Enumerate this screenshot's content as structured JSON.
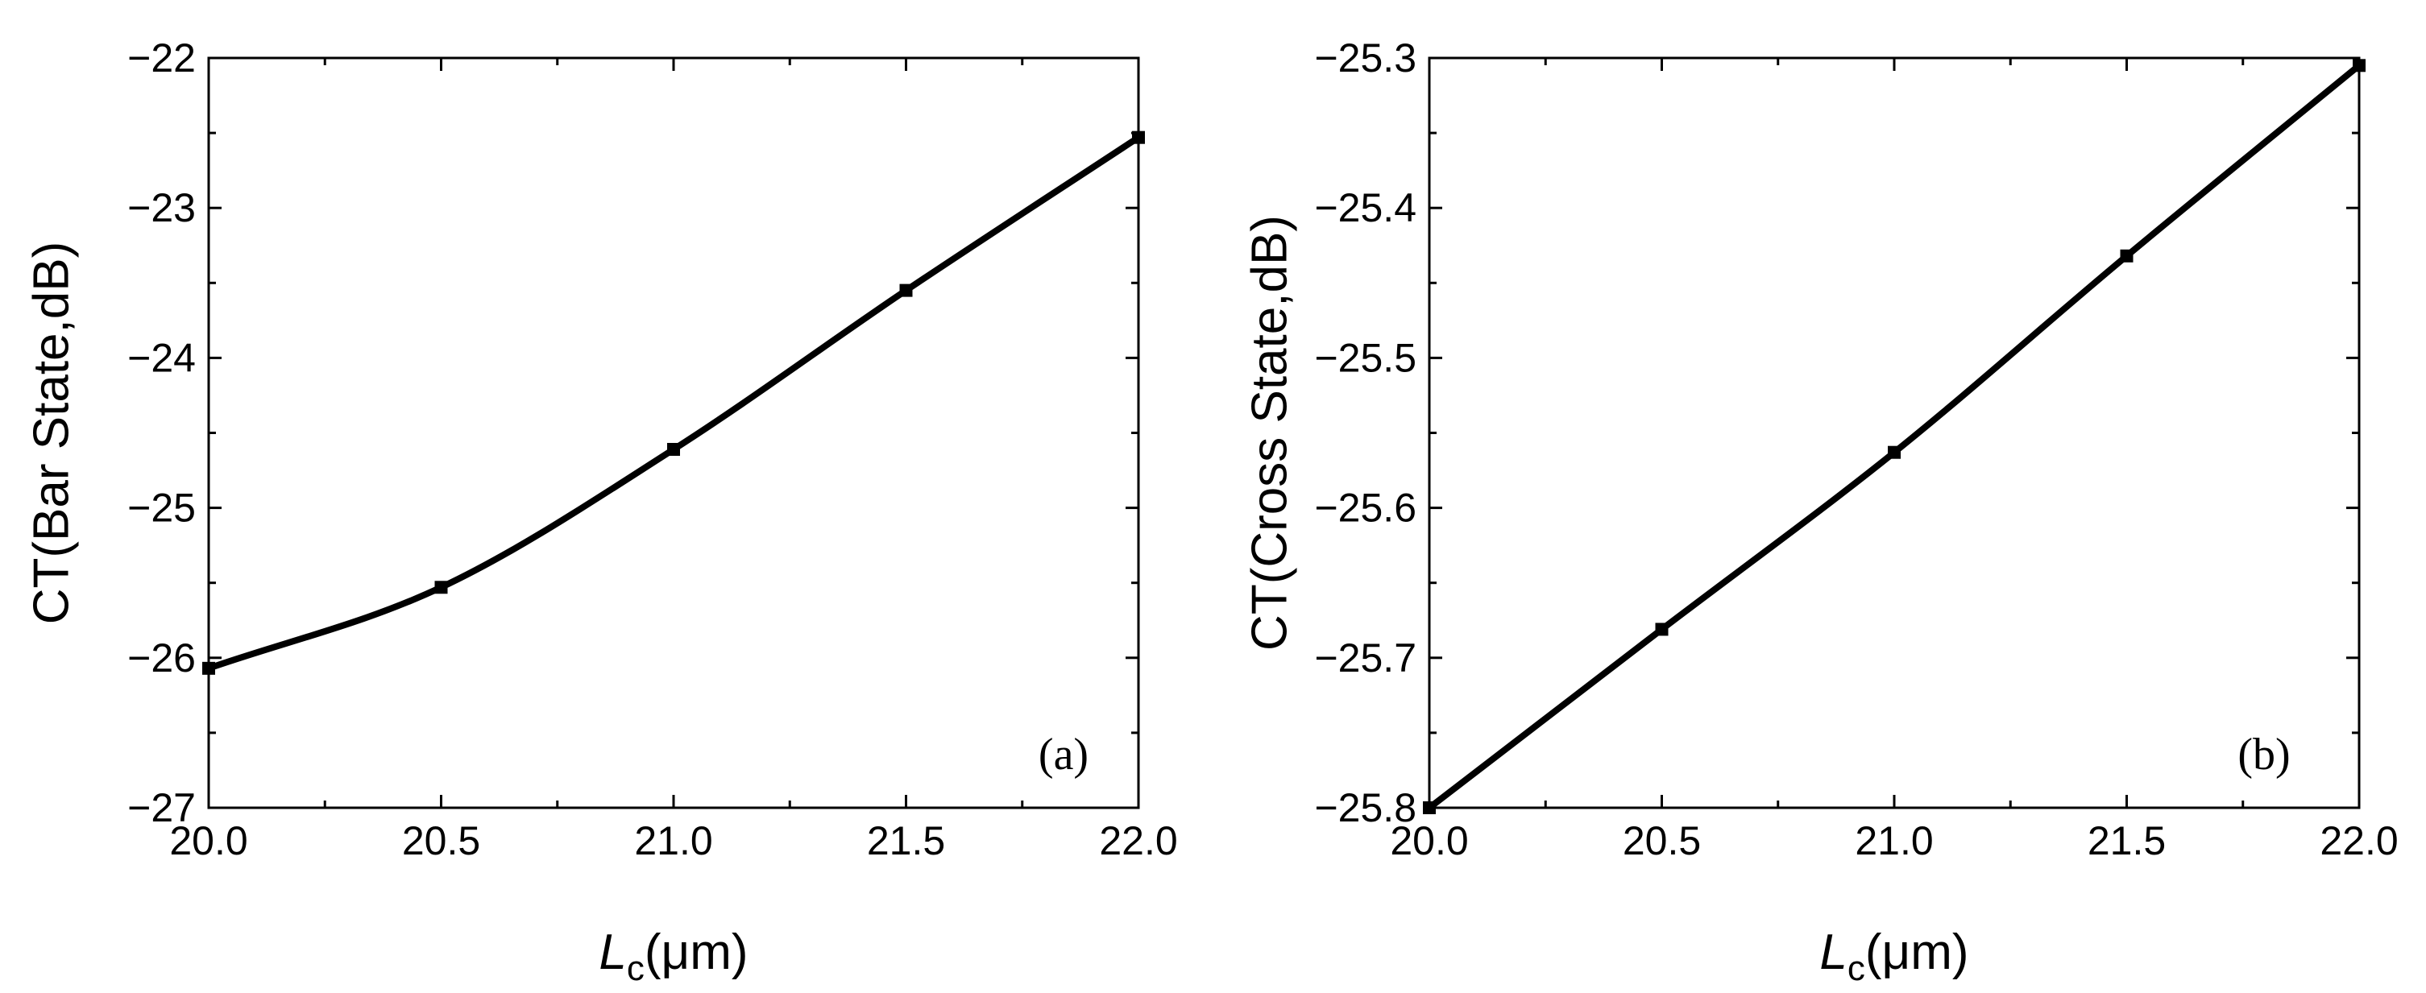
{
  "figure": {
    "panels": [
      "a",
      "b"
    ]
  },
  "chart_data": [
    {
      "type": "line",
      "panel_label": "(a)",
      "xlabel": {
        "main": "L",
        "sub": "c",
        "unit": "(μm)"
      },
      "ylabel": "CT(Bar State,dB)",
      "xlim": [
        20.0,
        22.0
      ],
      "ylim": [
        -27,
        -22
      ],
      "xticks": [
        20.0,
        20.5,
        21.0,
        21.5,
        22.0
      ],
      "xtick_labels": [
        "20.0",
        "20.5",
        "21.0",
        "21.5",
        "22.0"
      ],
      "yticks": [
        -27,
        -26,
        -25,
        -24,
        -23,
        -22
      ],
      "ytick_labels": [
        "−27",
        "−26",
        "−25",
        "−24",
        "−23",
        "−22"
      ],
      "grid": false,
      "series": [
        {
          "color": "#000000",
          "marker": "square",
          "x": [
            20.0,
            20.5,
            21.0,
            21.5,
            22.0
          ],
          "y": [
            -26.07,
            -25.53,
            -24.61,
            -23.55,
            -22.53
          ]
        }
      ]
    },
    {
      "type": "line",
      "panel_label": "(b)",
      "xlabel": {
        "main": "L",
        "sub": "c",
        "unit": "(μm)"
      },
      "ylabel": "CT(Cross State,dB)",
      "xlim": [
        20.0,
        22.0
      ],
      "ylim": [
        -25.8,
        -25.3
      ],
      "xticks": [
        20.0,
        20.5,
        21.0,
        21.5,
        22.0
      ],
      "xtick_labels": [
        "20.0",
        "20.5",
        "21.0",
        "21.5",
        "22.0"
      ],
      "yticks": [
        -25.8,
        -25.7,
        -25.6,
        -25.5,
        -25.4,
        -25.3
      ],
      "ytick_labels": [
        "−25.8",
        "−25.7",
        "−25.6",
        "−25.5",
        "−25.4",
        "−25.3"
      ],
      "grid": false,
      "series": [
        {
          "color": "#000000",
          "marker": "square",
          "x": [
            20.0,
            20.5,
            21.0,
            21.5,
            22.0
          ],
          "y": [
            -25.8,
            -25.681,
            -25.563,
            -25.432,
            -25.305
          ]
        }
      ]
    }
  ]
}
